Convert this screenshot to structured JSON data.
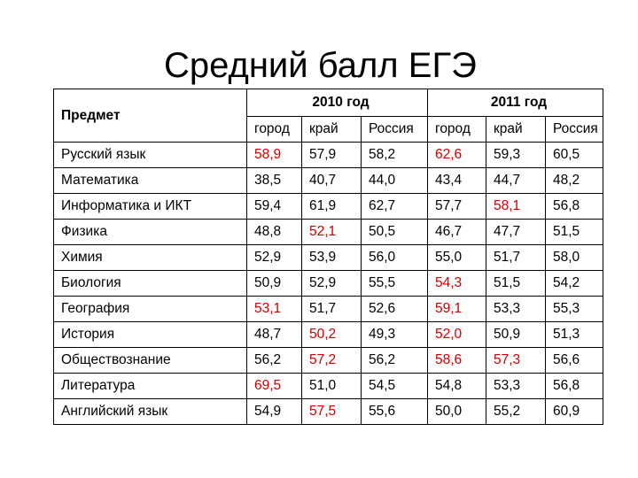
{
  "title": "Средний балл ЕГЭ",
  "header": {
    "subject": "Предмет",
    "year1": "2010 год",
    "year2": "2011 год",
    "cols": [
      "город",
      "край",
      "Россия",
      "город",
      "край",
      "Россия"
    ]
  },
  "rows": [
    {
      "subject": "Русский язык",
      "values": [
        "58,9",
        "57,9",
        "58,2",
        "62,6",
        "59,3",
        "60,5"
      ],
      "highlight": [
        0,
        3
      ]
    },
    {
      "subject": "Математика",
      "values": [
        "38,5",
        "40,7",
        "44,0",
        "43,4",
        "44,7",
        "48,2"
      ],
      "highlight": []
    },
    {
      "subject": "Информатика и ИКТ",
      "values": [
        "59,4",
        "61,9",
        "62,7",
        "57,7",
        "58,1",
        "56,8"
      ],
      "highlight": [
        4
      ]
    },
    {
      "subject": "Физика",
      "values": [
        "48,8",
        "52,1",
        "50,5",
        "46,7",
        "47,7",
        "51,5"
      ],
      "highlight": [
        1
      ]
    },
    {
      "subject": "Химия",
      "values": [
        "52,9",
        "53,9",
        "56,0",
        "55,0",
        "51,7",
        "58,0"
      ],
      "highlight": []
    },
    {
      "subject": "Биология",
      "values": [
        "50,9",
        "52,9",
        "55,5",
        "54,3",
        "51,5",
        "54,2"
      ],
      "highlight": [
        3
      ]
    },
    {
      "subject": "География",
      "values": [
        "53,1",
        "51,7",
        "52,6",
        "59,1",
        "53,3",
        "55,3"
      ],
      "highlight": [
        0,
        3
      ]
    },
    {
      "subject": "История",
      "values": [
        "48,7",
        "50,2",
        "49,3",
        "52,0",
        "50,9",
        "51,3"
      ],
      "highlight": [
        1,
        3
      ]
    },
    {
      "subject": "Обществознание",
      "values": [
        "56,2",
        "57,2",
        "56,2",
        "58,6",
        "57,3",
        "56,6"
      ],
      "highlight": [
        1,
        3,
        4
      ]
    },
    {
      "subject": "Литература",
      "values": [
        "69,5",
        "51,0",
        "54,5",
        "54,8",
        "53,3",
        "56,8"
      ],
      "highlight": [
        0
      ]
    },
    {
      "subject": "Английский язык",
      "values": [
        "54,9",
        "57,5",
        "55,6",
        "50,0",
        "55,2",
        "60,9"
      ],
      "highlight": [
        1
      ]
    }
  ],
  "colors": {
    "highlight": "#d00000",
    "text": "#000000"
  }
}
